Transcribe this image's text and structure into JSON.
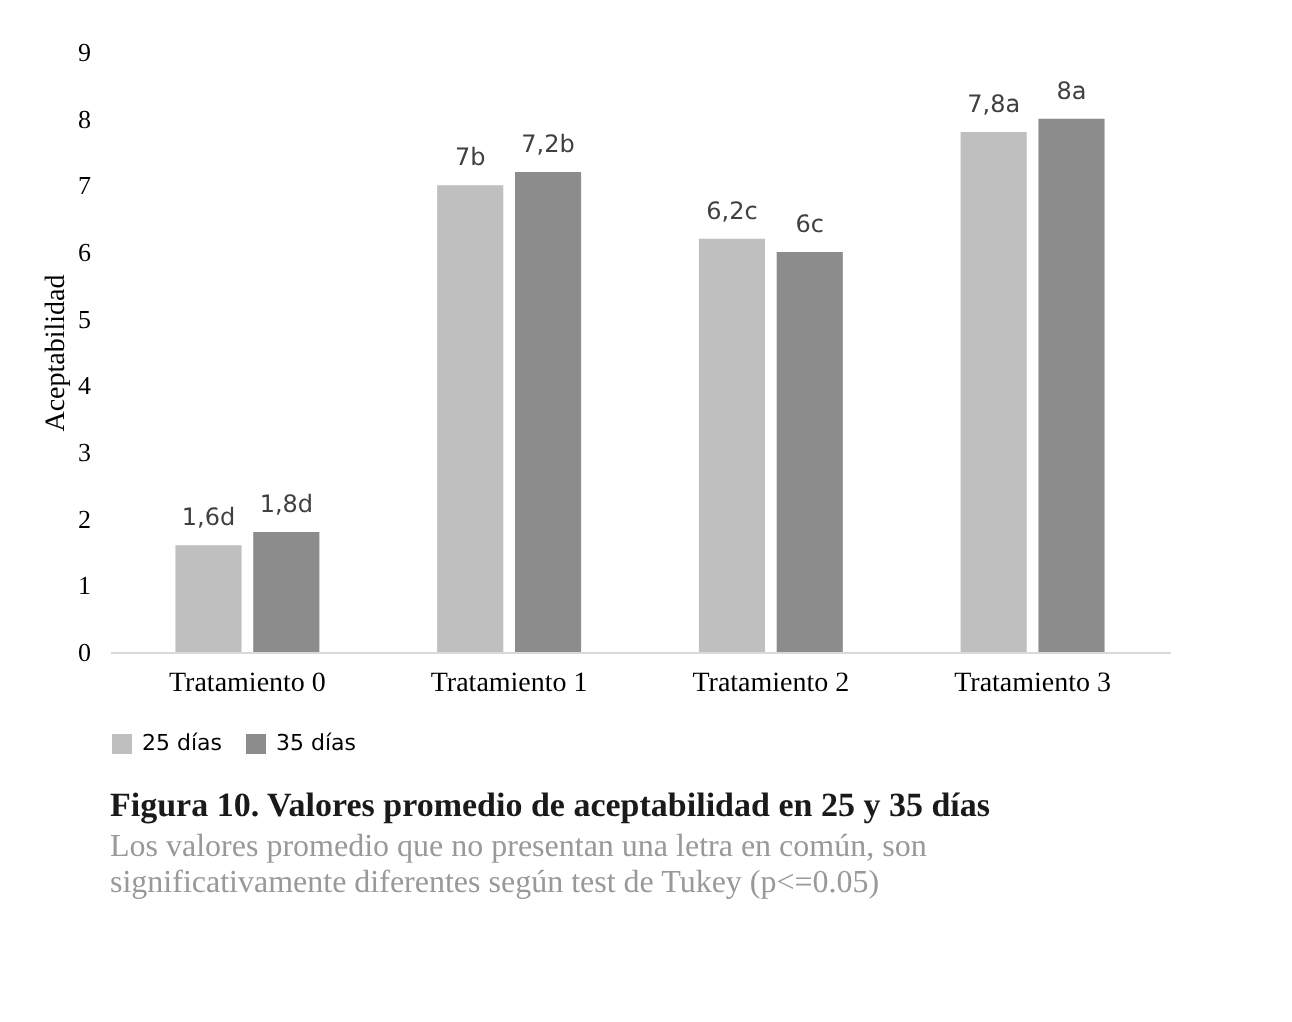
{
  "chart_data": {
    "type": "bar",
    "title": "Figura 10. Valores promedio de aceptabilidad en 25 y 35 días",
    "ylabel": "Aceptabilidad",
    "categories": [
      "Tratamiento 0",
      "Tratamiento 1",
      "Tratamiento 2",
      "Tratamiento 3"
    ],
    "series": [
      {
        "name": "25 días",
        "color": "#bfbfbf",
        "values": [
          1.6,
          7,
          6.2,
          7.8
        ],
        "value_labels": [
          "1,6d",
          "7b",
          "6,2c",
          "7,8a"
        ]
      },
      {
        "name": "35 días",
        "color": "#8c8c8c",
        "values": [
          1.8,
          7.2,
          6,
          8
        ],
        "value_labels": [
          "1,8d",
          "7,2b",
          "6c",
          "8a"
        ]
      }
    ],
    "ylim": [
      0,
      9
    ],
    "yticks": [
      0,
      1,
      2,
      3,
      4,
      5,
      6,
      7,
      8,
      9
    ],
    "grid": false,
    "legend": "bottom",
    "annotations": [
      "Los valores promedio que no presentan una letra en común, son significativamente diferentes según test de Tukey (p<=0.05)"
    ]
  }
}
